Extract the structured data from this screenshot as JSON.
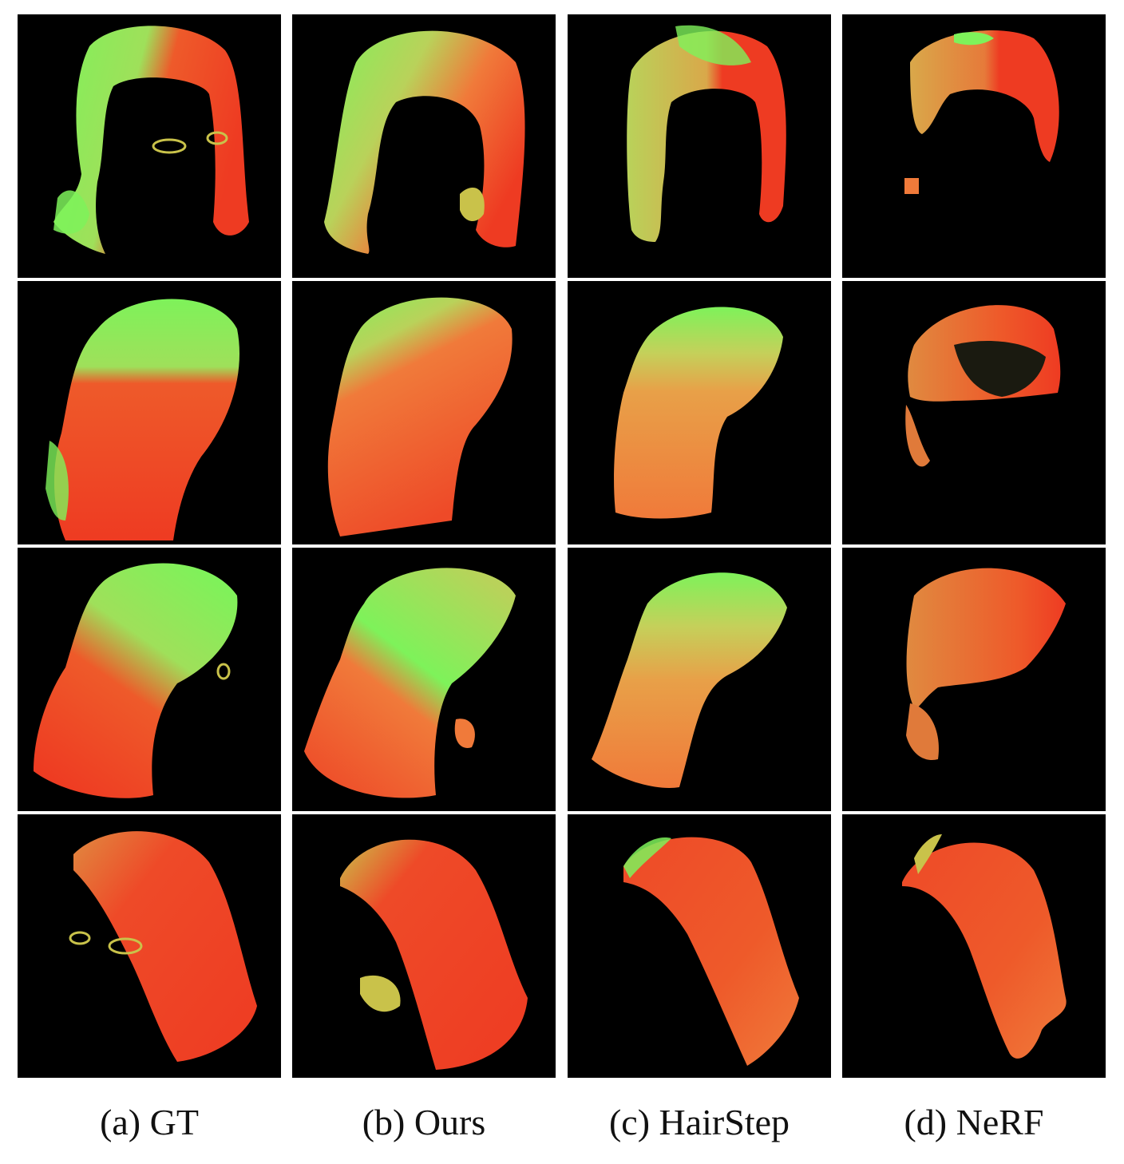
{
  "figure": {
    "columns": [
      {
        "id": "gt",
        "caption": "(a) GT"
      },
      {
        "id": "ours",
        "caption": "(b) Ours"
      },
      {
        "id": "hairstep",
        "caption": "(c) HairStep"
      },
      {
        "id": "nerf",
        "caption": "(d) NeRF"
      }
    ],
    "rows": 4,
    "colors": {
      "background": "#000000",
      "green": "#7ef25a",
      "red": "#ee3b22",
      "orange": "#f07a3a",
      "yellow": "#c9c24a"
    }
  }
}
